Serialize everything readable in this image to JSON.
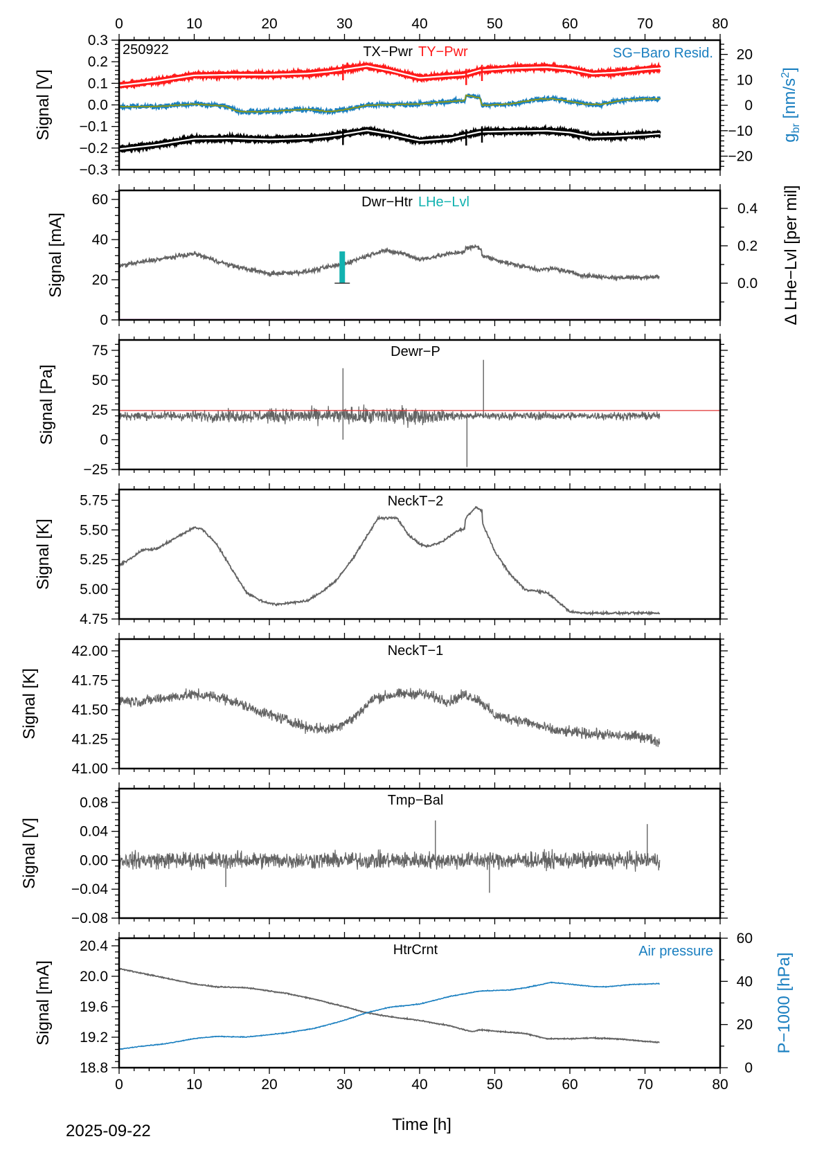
{
  "footer": {
    "date_label": "2025-09-22",
    "xlabel": "Time [h]"
  },
  "colors": {
    "black": "#000000",
    "red": "#ff1a1a",
    "blue": "#1a7fc0",
    "olive": "#8f9a10",
    "gray": "#636363",
    "teal": "#12b2b0",
    "magenta": "#b000b0",
    "thin_red": "#e03030"
  },
  "chart_data": [
    {
      "id": "p1",
      "type": "line",
      "title": "TX-Pwr / TY-Pwr / SG-Baro Resid.",
      "corner_label": "250922",
      "labels": [
        {
          "text": "TX−Pwr",
          "color": "#000000"
        },
        {
          "text": "TY−Pwr",
          "color": "#ff1a1a"
        }
      ],
      "right_label": {
        "text": "SG−Baro Resid.",
        "color": "#1a7fc0"
      },
      "xlim": [
        0,
        80
      ],
      "xticks": [
        0,
        10,
        20,
        30,
        40,
        50,
        60,
        70,
        80
      ],
      "ylabel": "Signal [V]",
      "ylim": [
        -0.3,
        0.3
      ],
      "yticks": [
        "0.3",
        "0.2",
        "0.1",
        "0.0",
        "−0.1",
        "−0.2",
        "−0.3"
      ],
      "ytick_values": [
        0.3,
        0.2,
        0.1,
        0.0,
        -0.1,
        -0.2,
        -0.3
      ],
      "y2label_main": "g",
      "y2label_sub": "br",
      "y2label_unit": " [nm/s",
      "y2label_sup": "2",
      "y2label_end": "]",
      "y2lim": [
        -25.3,
        25.6
      ],
      "y2ticks": [
        "20",
        "10",
        "0",
        "−10",
        "−20"
      ],
      "y2tick_values": [
        20,
        10,
        0,
        -10,
        -20
      ],
      "series": [
        {
          "name": "TY-Pwr",
          "axis": "left",
          "color": "#ff1a1a",
          "style": "noisy-band",
          "x": [
            0,
            5,
            10,
            15,
            20,
            25,
            28,
            30,
            33,
            36,
            40,
            44,
            46,
            48,
            52,
            57,
            60,
            63,
            66,
            70,
            72
          ],
          "y": [
            0.09,
            0.11,
            0.137,
            0.14,
            0.14,
            0.145,
            0.155,
            0.165,
            0.18,
            0.16,
            0.125,
            0.135,
            0.14,
            0.16,
            0.17,
            0.175,
            0.165,
            0.145,
            0.15,
            0.165,
            0.17
          ]
        },
        {
          "name": "TX-Pwr",
          "axis": "left",
          "color": "#000000",
          "style": "noisy-band",
          "x": [
            0,
            5,
            10,
            15,
            20,
            25,
            28,
            30,
            33,
            36,
            40,
            44,
            46,
            48,
            52,
            57,
            60,
            63,
            66,
            70,
            72
          ],
          "y": [
            -0.205,
            -0.185,
            -0.157,
            -0.155,
            -0.16,
            -0.155,
            -0.145,
            -0.135,
            -0.118,
            -0.135,
            -0.165,
            -0.155,
            -0.14,
            -0.125,
            -0.122,
            -0.12,
            -0.128,
            -0.148,
            -0.145,
            -0.138,
            -0.133
          ]
        },
        {
          "name": "SG-Baro Resid.",
          "axis": "right",
          "color": "#1a7fc0",
          "smooth_color": "#8f9a10",
          "style": "noisy-smooth",
          "x": [
            0,
            5,
            10,
            14,
            16,
            20,
            25,
            28,
            30,
            33,
            37,
            40,
            44,
            46,
            46.2,
            48,
            48.3,
            52,
            56,
            58,
            62,
            64,
            67,
            70,
            72
          ],
          "y": [
            -0.5,
            -0.5,
            0.5,
            -0.3,
            -2.5,
            -2.5,
            -1.5,
            -2.5,
            -1.8,
            0,
            0.3,
            0.5,
            1.5,
            1.8,
            4,
            3,
            0,
            0.5,
            2.5,
            2.5,
            0.5,
            0.3,
            2,
            2.5,
            2.5
          ]
        }
      ]
    },
    {
      "id": "p2",
      "type": "line",
      "labels": [
        {
          "text": "Dwr−Htr",
          "color": "#000000"
        },
        {
          "text": "LHe−Lvl",
          "color": "#12b2b0"
        }
      ],
      "xlim": [
        0,
        80
      ],
      "ylabel": "Signal [mA]",
      "ylim": [
        0,
        64.5
      ],
      "yticks": [
        "60",
        "40",
        "20",
        "0"
      ],
      "ytick_values": [
        60,
        40,
        20,
        0
      ],
      "y2label": "Δ LHe−Lvl [per mil]",
      "y2lim": [
        -0.196,
        0.496
      ],
      "y2ticks": [
        "0.4",
        "0.2",
        "0.0"
      ],
      "y2tick_values": [
        0.4,
        0.2,
        0.0
      ],
      "series": [
        {
          "name": "Dwr-Htr",
          "axis": "left",
          "color": "#636363",
          "x": [
            0,
            5,
            10,
            15,
            20,
            25,
            30,
            35,
            38,
            40,
            44,
            46,
            46.1,
            47.5,
            48.2,
            48.3,
            52,
            56,
            58,
            62,
            66,
            72
          ],
          "y": [
            27,
            30,
            33,
            27,
            23,
            24,
            28,
            34.5,
            33,
            30,
            33,
            34,
            35.5,
            36.5,
            35.5,
            32,
            28,
            25,
            25.5,
            22,
            21,
            21.5
          ]
        },
        {
          "name": "Dwr-Htr zero",
          "axis": "left",
          "color": "#b000b0",
          "x": [
            0,
            72
          ],
          "y": [
            0,
            0
          ]
        },
        {
          "name": "LHe-Lvl",
          "axis": "right",
          "color": "#12b2b0",
          "style": "bar",
          "x": [
            29.7
          ],
          "y_from": [
            0.0
          ],
          "y_to": [
            0.17
          ]
        }
      ]
    },
    {
      "id": "p3",
      "type": "line",
      "labels": [
        {
          "text": "Dewr−P",
          "color": "#000000"
        }
      ],
      "xlim": [
        0,
        80
      ],
      "ylabel": "Signal [Pa]",
      "ylim": [
        -25,
        83.7
      ],
      "yticks": [
        "75",
        "50",
        "25",
        "0",
        "−25"
      ],
      "ytick_values": [
        75,
        50,
        25,
        0,
        -25
      ],
      "series": [
        {
          "name": "Dewr-P",
          "axis": "left",
          "color": "#636363",
          "style": "noise",
          "x": [
            0,
            38,
            46.2,
            72
          ],
          "y": [
            20,
            20,
            20,
            20
          ],
          "noise": [
            5,
            12,
            5,
            5
          ],
          "spikes": [
            {
              "x": 29.8,
              "y": 60
            },
            {
              "x": 29.8,
              "y": 0
            },
            {
              "x": 48.5,
              "y": 67
            },
            {
              "x": 46.3,
              "y": -23
            }
          ]
        },
        {
          "name": "Dewr-P reference",
          "axis": "left",
          "color": "#e03030",
          "x": [
            0,
            80
          ],
          "y": [
            24.5,
            24.5
          ]
        }
      ]
    },
    {
      "id": "p4",
      "type": "line",
      "labels": [
        {
          "text": "NeckT−2",
          "color": "#000000"
        }
      ],
      "xlim": [
        0,
        80
      ],
      "ylabel": "Signal [K]",
      "ylim": [
        4.75,
        5.84
      ],
      "yticks": [
        "5.75",
        "5.50",
        "5.25",
        "5.00",
        "4.75"
      ],
      "ytick_values": [
        5.75,
        5.5,
        5.25,
        5.0,
        4.75
      ],
      "series": [
        {
          "name": "NeckT-2",
          "axis": "left",
          "color": "#636363",
          "x": [
            0,
            2,
            3,
            5,
            8,
            10,
            11,
            13,
            15,
            17,
            19,
            21,
            23,
            25,
            27,
            29,
            31,
            33,
            34.5,
            36,
            37,
            38.5,
            40,
            41,
            43,
            45,
            46,
            46.1,
            47.5,
            48.3,
            48.4,
            50,
            52,
            54,
            55,
            57,
            58,
            60,
            62,
            66,
            72
          ],
          "y": [
            5.2,
            5.28,
            5.33,
            5.34,
            5.45,
            5.52,
            5.51,
            5.38,
            5.17,
            4.97,
            4.9,
            4.87,
            4.89,
            4.9,
            4.98,
            5.08,
            5.25,
            5.45,
            5.6,
            5.6,
            5.6,
            5.46,
            5.38,
            5.36,
            5.4,
            5.49,
            5.51,
            5.6,
            5.69,
            5.66,
            5.55,
            5.32,
            5.13,
            5.0,
            4.99,
            4.97,
            4.92,
            4.81,
            4.8,
            4.8,
            4.8
          ]
        }
      ]
    },
    {
      "id": "p5",
      "type": "line",
      "labels": [
        {
          "text": "NeckT−1",
          "color": "#000000"
        }
      ],
      "xlim": [
        0,
        80
      ],
      "ylabel": "Signal [K]",
      "ylim": [
        41.0,
        42.1
      ],
      "yticks": [
        "42.00",
        "41.75",
        "41.50",
        "41.25",
        "41.00"
      ],
      "ytick_values": [
        42.0,
        41.75,
        41.5,
        41.25,
        41.0
      ],
      "series": [
        {
          "name": "NeckT-1",
          "axis": "left",
          "color": "#636363",
          "style": "noise",
          "x": [
            0,
            3,
            6,
            10,
            14,
            18,
            22,
            25,
            28,
            31,
            34,
            37,
            40,
            44,
            46,
            48,
            50,
            54,
            58,
            62,
            66,
            70,
            72
          ],
          "y": [
            41.58,
            41.57,
            41.6,
            41.63,
            41.6,
            41.5,
            41.42,
            41.35,
            41.33,
            41.42,
            41.6,
            41.63,
            41.64,
            41.57,
            41.63,
            41.58,
            41.45,
            41.4,
            41.32,
            41.3,
            41.28,
            41.27,
            41.22
          ],
          "noise": [
            0.07
          ]
        }
      ]
    },
    {
      "id": "p6",
      "type": "line",
      "labels": [
        {
          "text": "Tmp−Bal",
          "color": "#000000"
        }
      ],
      "xlim": [
        0,
        80
      ],
      "ylabel": "Signal [V]",
      "ylim": [
        -0.08,
        0.099
      ],
      "yticks": [
        "0.08",
        "0.04",
        "0.00",
        "−0.04",
        "−0.08"
      ],
      "ytick_values": [
        0.08,
        0.04,
        0.0,
        -0.04,
        -0.08
      ],
      "series": [
        {
          "name": "Tmp-Bal",
          "axis": "left",
          "color": "#636363",
          "style": "noise",
          "x": [
            0,
            72
          ],
          "y": [
            0.0,
            0.0
          ],
          "noise": [
            0.018
          ],
          "spikes": [
            {
              "x": 42.1,
              "y": 0.055
            },
            {
              "x": 70.3,
              "y": 0.05
            },
            {
              "x": 49.3,
              "y": -0.045
            },
            {
              "x": 14.2,
              "y": -0.037
            }
          ]
        }
      ]
    },
    {
      "id": "p7",
      "type": "line",
      "labels": [
        {
          "text": "HtrCrnt",
          "color": "#000000"
        }
      ],
      "right_label": {
        "text": "Air pressure",
        "color": "#1a7fc0"
      },
      "xlim": [
        0,
        80
      ],
      "xticks": [
        0,
        10,
        20,
        30,
        40,
        50,
        60,
        70,
        80
      ],
      "ylabel": "Signal [mA]",
      "ylim": [
        18.8,
        20.5
      ],
      "yticks": [
        "20.4",
        "20.0",
        "19.6",
        "19.2",
        "18.8"
      ],
      "ytick_values": [
        20.4,
        20.0,
        19.6,
        19.2,
        18.8
      ],
      "y2label": "P−1000 [hPa]",
      "y2lim": [
        0,
        60
      ],
      "y2ticks": [
        "60",
        "40",
        "20",
        "0"
      ],
      "y2tick_values": [
        60,
        40,
        20,
        0
      ],
      "series": [
        {
          "name": "HtrCrnt",
          "axis": "left",
          "color": "#636363",
          "x": [
            0,
            5,
            10,
            13,
            17,
            22,
            26,
            30,
            33,
            36,
            40,
            44,
            47,
            48,
            50,
            54,
            57,
            60,
            63,
            66,
            72
          ],
          "y": [
            20.1,
            20.0,
            19.9,
            19.86,
            19.85,
            19.78,
            19.7,
            19.6,
            19.52,
            19.47,
            19.42,
            19.35,
            19.27,
            19.3,
            19.28,
            19.25,
            19.18,
            19.18,
            19.19,
            19.18,
            19.13
          ]
        },
        {
          "name": "Air pressure",
          "axis": "right",
          "color": "#1a7fc0",
          "x": [
            0,
            3,
            6,
            10,
            13,
            17,
            22,
            26,
            30,
            33,
            36,
            40,
            44,
            48,
            52,
            54,
            57.5,
            60,
            63,
            65,
            68,
            72
          ],
          "y": [
            8.5,
            10,
            11,
            13.5,
            14.5,
            14.2,
            16,
            18.2,
            22,
            25.5,
            28,
            29.5,
            33,
            35.5,
            36,
            37,
            39.5,
            38.7,
            37.6,
            37.5,
            38.5,
            39
          ]
        }
      ]
    }
  ]
}
